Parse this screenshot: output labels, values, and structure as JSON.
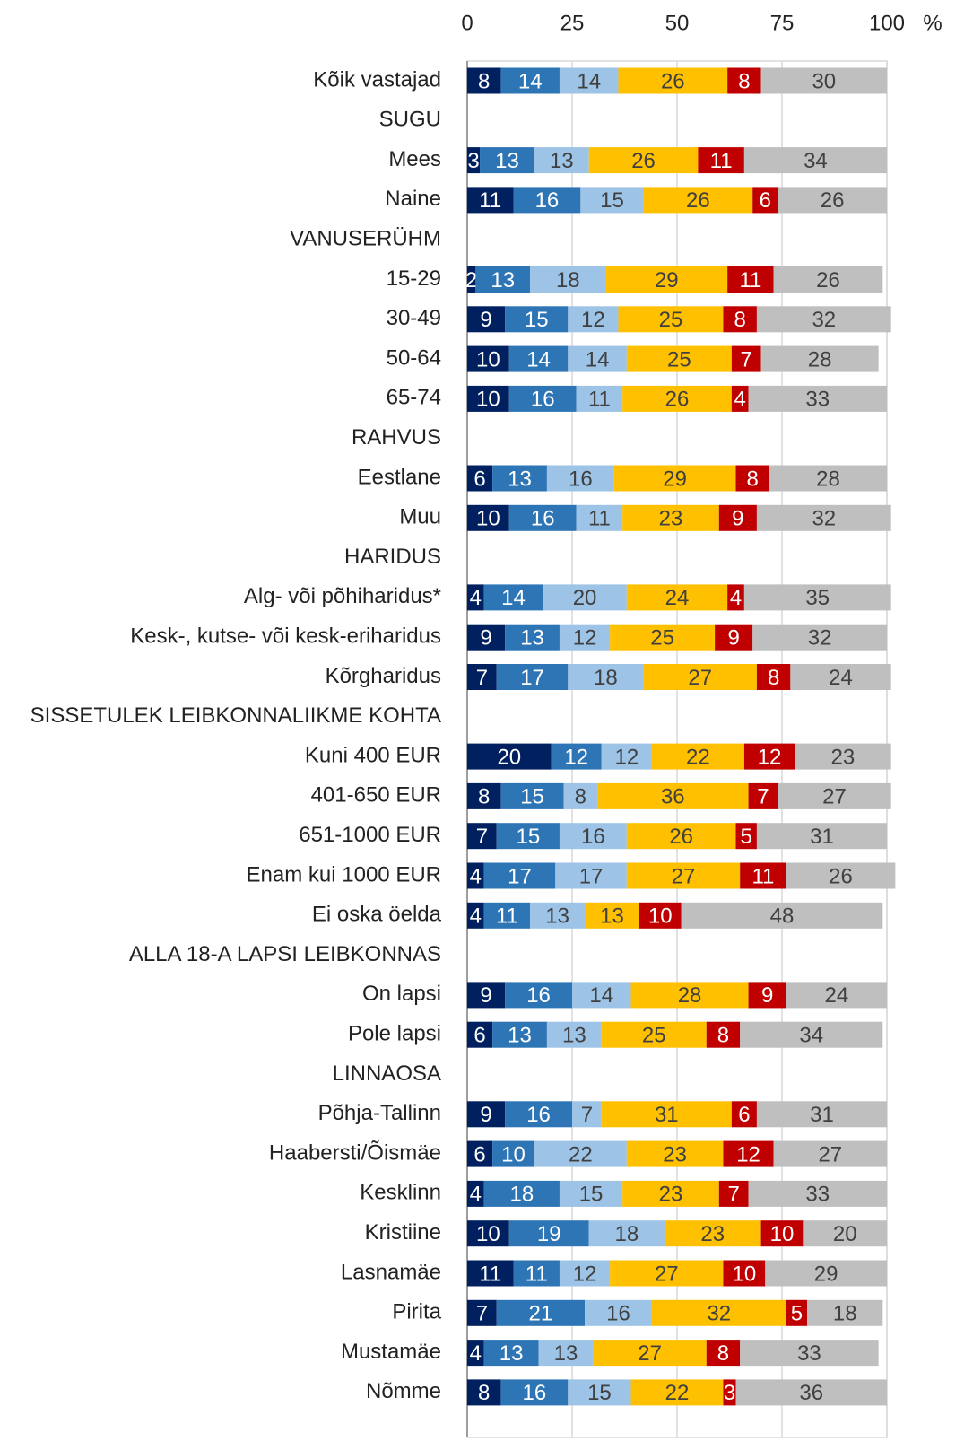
{
  "chart_data": {
    "type": "stacked-bar-horizontal",
    "xlabel": "%",
    "xlim": [
      0,
      100
    ],
    "xticks": [
      0,
      25,
      50,
      75,
      100
    ],
    "grid": true,
    "categories": [
      "Kõik vastajad",
      "SUGU",
      "Mees",
      "Naine",
      "VANUSERÜHM",
      "15-29",
      "30-49",
      "50-64",
      "65-74",
      "RAHVUS",
      "Eestlane",
      "Muu",
      "HARIDUS",
      "Alg- või  põhiharidus*",
      "Kesk-, kutse- või kesk-eriharidus",
      "Kõrgharidus",
      "SISSETULEK LEIBKONNALIIKME KOHTA",
      "Kuni 400 EUR",
      "401-650 EUR",
      "651-1000 EUR",
      "Enam kui 1000 EUR",
      "Ei oska öelda",
      "ALLA 18-A LAPSI LEIBKONNAS",
      "On lapsi",
      "Pole lapsi",
      "LINNAOSA",
      "Põhja-Tallinn",
      "Haabersti/Õismäe",
      "Kesklinn",
      "Kristiine",
      "Lasnamäe",
      "Pirita",
      "Mustamäe",
      "Nõmme"
    ],
    "series": [
      {
        "color": "#002060",
        "label_color": "#ffffff",
        "values": [
          8,
          null,
          3,
          11,
          null,
          2,
          9,
          10,
          10,
          null,
          6,
          10,
          null,
          4,
          9,
          7,
          null,
          20,
          8,
          7,
          4,
          4,
          null,
          9,
          6,
          null,
          9,
          6,
          4,
          10,
          11,
          7,
          4,
          8
        ]
      },
      {
        "color": "#2e75b6",
        "label_color": "#ffffff",
        "values": [
          14,
          null,
          13,
          16,
          null,
          13,
          15,
          14,
          16,
          null,
          13,
          16,
          null,
          14,
          13,
          17,
          null,
          12,
          15,
          15,
          17,
          11,
          null,
          16,
          13,
          null,
          16,
          10,
          18,
          19,
          11,
          21,
          13,
          16
        ]
      },
      {
        "color": "#9dc3e6",
        "label_color": "#404040",
        "values": [
          14,
          null,
          13,
          15,
          null,
          18,
          12,
          14,
          11,
          null,
          16,
          11,
          null,
          20,
          12,
          18,
          null,
          12,
          8,
          16,
          17,
          13,
          null,
          14,
          13,
          null,
          7,
          22,
          15,
          18,
          12,
          16,
          13,
          15
        ]
      },
      {
        "color": "#ffc000",
        "label_color": "#404040",
        "values": [
          26,
          null,
          26,
          26,
          null,
          29,
          25,
          25,
          26,
          null,
          29,
          23,
          null,
          24,
          25,
          27,
          null,
          22,
          36,
          26,
          27,
          13,
          null,
          28,
          25,
          null,
          31,
          23,
          23,
          23,
          27,
          32,
          27,
          22
        ]
      },
      {
        "color": "#c00000",
        "label_color": "#ffffff",
        "values": [
          8,
          null,
          11,
          6,
          null,
          11,
          8,
          7,
          4,
          null,
          8,
          9,
          null,
          4,
          9,
          8,
          null,
          12,
          7,
          5,
          11,
          10,
          null,
          9,
          8,
          null,
          6,
          12,
          7,
          10,
          10,
          5,
          8,
          3
        ]
      },
      {
        "color": "#bfbfbf",
        "label_color": "#404040",
        "values": [
          30,
          null,
          34,
          26,
          null,
          26,
          32,
          28,
          33,
          null,
          28,
          32,
          null,
          35,
          32,
          24,
          null,
          23,
          27,
          31,
          26,
          48,
          null,
          24,
          34,
          null,
          31,
          27,
          33,
          20,
          29,
          18,
          33,
          36
        ]
      }
    ]
  }
}
